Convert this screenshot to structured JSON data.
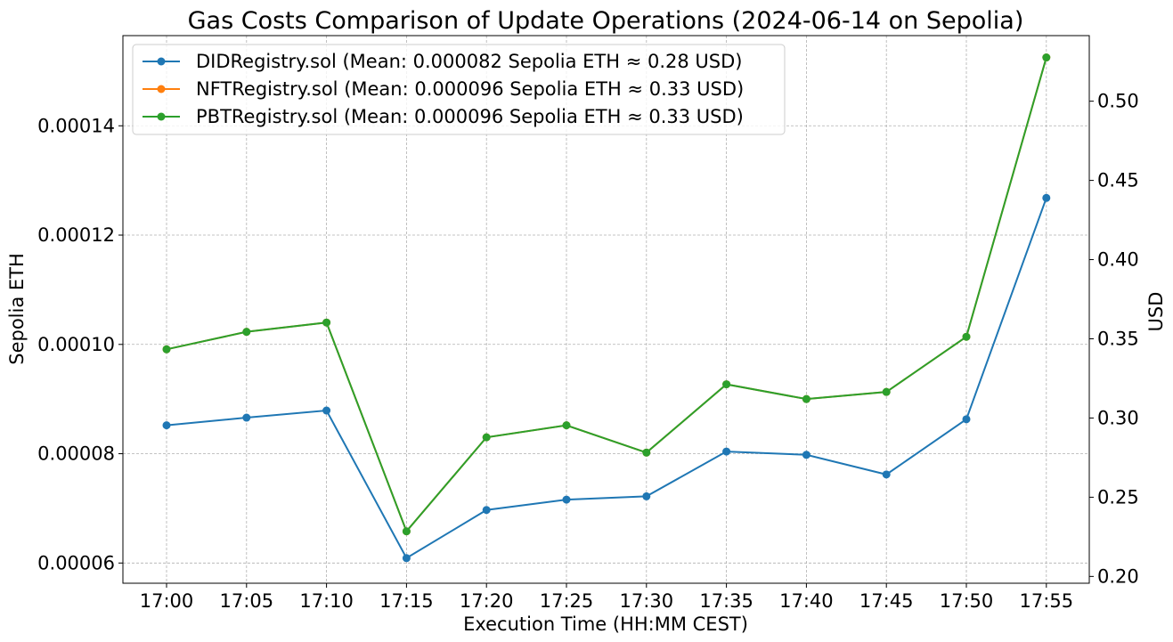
{
  "chart_data": {
    "type": "line",
    "title": "Gas Costs Comparison of Update Operations (2024-06-14 on Sepolia)",
    "xlabel": "Execution Time (HH:MM CEST)",
    "ylabel": "Sepolia ETH",
    "y2label": "USD",
    "categories": [
      "17:00",
      "17:05",
      "17:10",
      "17:15",
      "17:20",
      "17:25",
      "17:30",
      "17:35",
      "17:40",
      "17:45",
      "17:50",
      "17:55"
    ],
    "ylim": [
      5.63e-05,
      0.0001565
    ],
    "y2lim": [
      0.1957,
      0.5414
    ],
    "yticks": [
      "0.00006",
      "0.00008",
      "0.00010",
      "0.00012",
      "0.00014"
    ],
    "yticks_values": [
      6e-05,
      8e-05,
      0.0001,
      0.00012,
      0.00014
    ],
    "y2ticks": [
      "0.20",
      "0.25",
      "0.30",
      "0.35",
      "0.40",
      "0.45",
      "0.50"
    ],
    "y2ticks_values": [
      0.2,
      0.25,
      0.3,
      0.35,
      0.4,
      0.45,
      0.5
    ],
    "grid": true,
    "legend_position": "top-left",
    "series": [
      {
        "name": "DIDRegistry.sol (Mean: 0.000082 Sepolia ETH ≈ 0.28 USD)",
        "color": "#1f77b4",
        "values": [
          8.52e-05,
          8.66e-05,
          8.79e-05,
          6.09e-05,
          6.97e-05,
          7.16e-05,
          7.22e-05,
          8.04e-05,
          7.98e-05,
          7.62e-05,
          8.63e-05,
          0.0001268
        ]
      },
      {
        "name": "NFTRegistry.sol (Mean: 0.000096 Sepolia ETH ≈ 0.33 USD)",
        "color": "#ff7f0e",
        "values": [
          9.91e-05,
          0.0001023,
          0.000104,
          6.58e-05,
          8.3e-05,
          8.52e-05,
          8.02e-05,
          9.27e-05,
          9e-05,
          9.13e-05,
          0.0001014,
          0.0001525
        ]
      },
      {
        "name": "PBTRegistry.sol (Mean: 0.000096 Sepolia ETH ≈ 0.33 USD)",
        "color": "#2ca02c",
        "values": [
          9.91e-05,
          0.0001023,
          0.000104,
          6.58e-05,
          8.3e-05,
          8.52e-05,
          8.02e-05,
          9.27e-05,
          9e-05,
          9.13e-05,
          0.0001014,
          0.0001525
        ]
      }
    ]
  }
}
